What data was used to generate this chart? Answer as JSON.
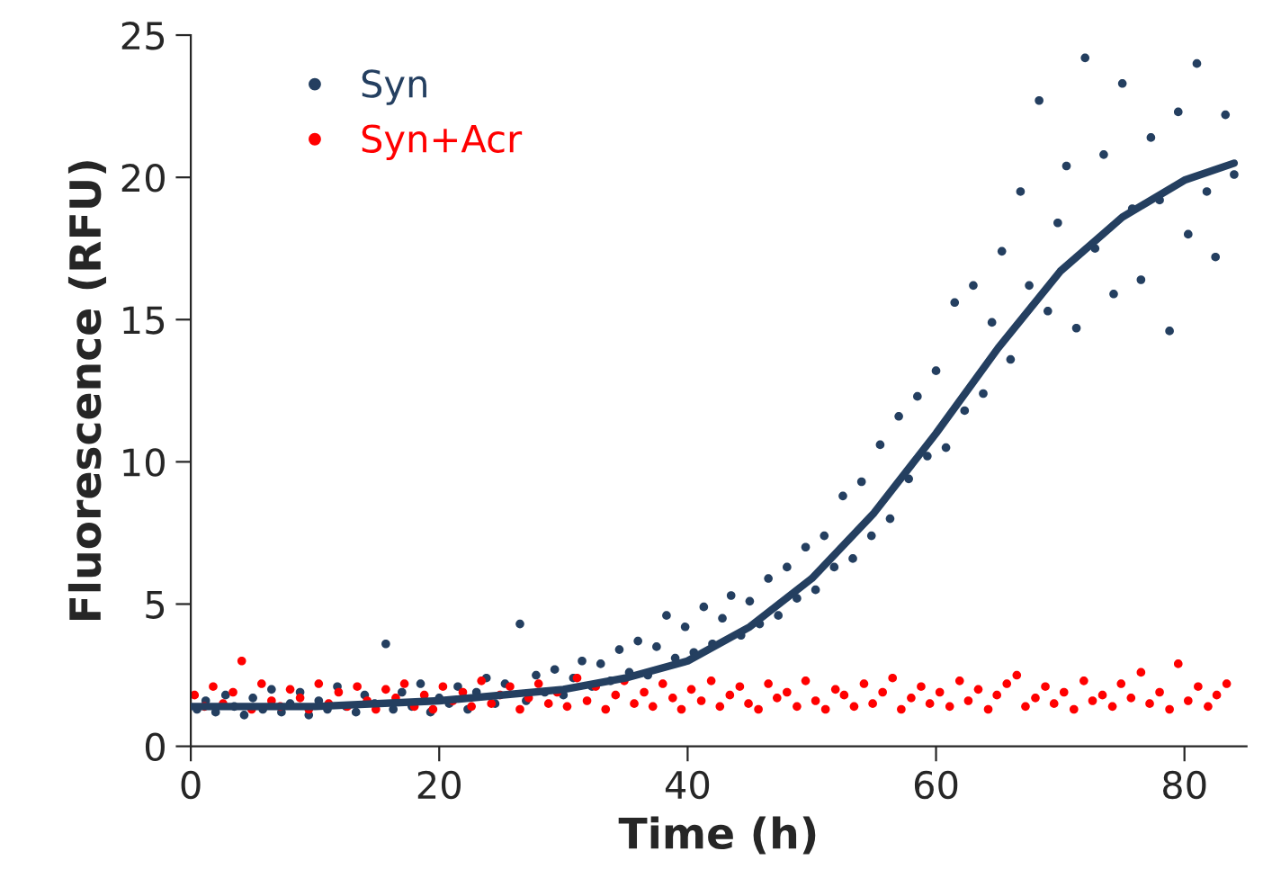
{
  "chart_data": {
    "type": "scatter",
    "xlabel": "Time (h)",
    "ylabel": "Fluorescence (RFU)",
    "xlim": [
      0,
      85
    ],
    "ylim": [
      0,
      25
    ],
    "xticks": [
      0,
      20,
      40,
      60,
      80
    ],
    "yticks": [
      0,
      5,
      10,
      15,
      20,
      25
    ],
    "grid": false,
    "legend": "top left",
    "series": [
      {
        "name": "Syn",
        "marker": "circle",
        "color": "#243f60",
        "x": [
          0.5,
          1.2,
          2,
          2.8,
          3.5,
          4.3,
          5,
          5.8,
          6.5,
          7.3,
          8,
          8.8,
          9.5,
          10.3,
          11,
          11.8,
          12.5,
          13.3,
          14,
          14.8,
          15.7,
          16.3,
          17,
          17.8,
          18.5,
          19.3,
          20,
          20.8,
          21.5,
          22.3,
          23,
          23.8,
          24.5,
          25.3,
          26.5,
          27,
          27.8,
          28.5,
          29.3,
          30,
          30.8,
          31.5,
          32.3,
          33,
          33.8,
          34.5,
          35.3,
          36,
          36.8,
          37.5,
          38.3,
          39,
          39.8,
          40.5,
          41.3,
          42,
          42.8,
          43.5,
          44.3,
          45,
          45.8,
          46.5,
          47.3,
          48,
          48.8,
          49.5,
          50.3,
          51,
          51.8,
          52.5,
          53.3,
          54,
          54.8,
          55.5,
          56.3,
          57,
          57.8,
          58.5,
          59.3,
          60,
          60.8,
          61.5,
          62.3,
          63,
          63.8,
          64.5,
          65.3,
          66,
          66.8,
          67.5,
          68.3,
          69,
          69.8,
          70.5,
          71.3,
          72,
          72.8,
          73.5,
          74.3,
          75,
          75.8,
          76.5,
          77.3,
          78,
          78.8,
          79.5,
          80.3,
          81,
          81.8,
          82.5,
          83.3,
          84
        ],
        "values": [
          1.3,
          1.6,
          1.2,
          1.8,
          1.4,
          1.1,
          1.7,
          1.3,
          2.0,
          1.2,
          1.5,
          1.9,
          1.1,
          1.6,
          1.3,
          2.1,
          1.4,
          1.2,
          1.8,
          1.5,
          3.6,
          1.3,
          1.9,
          1.4,
          2.2,
          1.2,
          1.7,
          1.5,
          2.1,
          1.3,
          1.9,
          2.4,
          1.5,
          2.2,
          4.3,
          1.6,
          2.5,
          1.9,
          2.7,
          1.8,
          2.4,
          3.0,
          2.1,
          2.9,
          2.3,
          3.4,
          2.6,
          3.7,
          2.5,
          3.5,
          4.6,
          3.1,
          4.2,
          3.3,
          4.9,
          3.6,
          4.5,
          5.3,
          3.9,
          5.1,
          4.3,
          5.9,
          4.6,
          6.3,
          5.2,
          7.0,
          5.5,
          7.4,
          6.3,
          8.8,
          6.6,
          9.3,
          7.4,
          10.6,
          8.0,
          11.6,
          9.4,
          12.3,
          10.2,
          13.2,
          10.5,
          15.6,
          11.8,
          16.2,
          12.4,
          14.9,
          17.4,
          13.6,
          19.5,
          16.2,
          22.7,
          15.3,
          18.4,
          20.4,
          14.7,
          24.2,
          17.5,
          20.8,
          15.9,
          23.3,
          18.9,
          16.4,
          21.4,
          19.2,
          14.6,
          22.3,
          18.0,
          24.0,
          19.5,
          17.2,
          22.2,
          20.1
        ]
      },
      {
        "name": "Syn+Acr",
        "marker": "circle",
        "color": "#ff0000",
        "x": [
          0.3,
          1.1,
          1.8,
          2.6,
          3.4,
          4.1,
          4.9,
          5.7,
          6.5,
          7.2,
          8,
          8.8,
          9.5,
          10.3,
          11.1,
          11.9,
          12.6,
          13.4,
          14.2,
          14.9,
          15.7,
          16.5,
          17.2,
          18,
          18.8,
          19.5,
          20.3,
          21.1,
          21.9,
          22.6,
          23.4,
          24.2,
          24.9,
          25.7,
          26.5,
          27.2,
          28,
          28.8,
          29.5,
          30.3,
          31.1,
          31.9,
          32.6,
          33.4,
          34.2,
          34.9,
          35.7,
          36.5,
          37.2,
          38,
          38.8,
          39.5,
          40.3,
          41.1,
          41.9,
          42.6,
          43.4,
          44.2,
          44.9,
          45.7,
          46.5,
          47.2,
          48,
          48.8,
          49.5,
          50.3,
          51.1,
          51.9,
          52.6,
          53.4,
          54.2,
          54.9,
          55.7,
          56.5,
          57.2,
          58,
          58.8,
          59.5,
          60.3,
          61.1,
          61.9,
          62.6,
          63.4,
          64.2,
          64.9,
          65.7,
          66.5,
          67.2,
          68,
          68.8,
          69.5,
          70.3,
          71.1,
          71.9,
          72.6,
          73.4,
          74.2,
          74.9,
          75.7,
          76.5,
          77.2,
          78,
          78.8,
          79.5,
          80.3,
          81.1,
          81.9,
          82.6,
          83.4
        ],
        "values": [
          1.8,
          1.4,
          2.1,
          1.5,
          1.9,
          3.0,
          1.3,
          2.2,
          1.6,
          1.4,
          2.0,
          1.7,
          1.3,
          2.2,
          1.5,
          1.9,
          1.4,
          2.1,
          1.6,
          1.3,
          2.0,
          1.7,
          2.2,
          1.4,
          1.8,
          1.3,
          2.1,
          1.6,
          1.9,
          1.4,
          2.3,
          1.5,
          1.8,
          2.1,
          1.3,
          1.7,
          2.2,
          1.5,
          1.9,
          1.4,
          2.4,
          1.6,
          2.1,
          1.3,
          1.8,
          2.3,
          1.5,
          1.9,
          1.4,
          2.2,
          1.7,
          1.3,
          2.0,
          1.6,
          2.3,
          1.4,
          1.8,
          2.1,
          1.5,
          1.3,
          2.2,
          1.7,
          1.9,
          1.4,
          2.3,
          1.6,
          1.3,
          2.0,
          1.8,
          1.4,
          2.2,
          1.5,
          1.9,
          2.4,
          1.3,
          1.7,
          2.1,
          1.5,
          1.9,
          1.4,
          2.3,
          1.6,
          2.0,
          1.3,
          1.8,
          2.2,
          2.5,
          1.4,
          1.7,
          2.1,
          1.5,
          1.9,
          1.3,
          2.3,
          1.6,
          1.8,
          1.4,
          2.2,
          1.7,
          2.6,
          1.5,
          1.9,
          1.3,
          2.9,
          1.6,
          2.1,
          1.4,
          1.8,
          2.2
        ]
      },
      {
        "type": "line",
        "marker": "none",
        "color": "#243f60",
        "x": [
          0,
          10,
          20,
          30,
          35,
          40,
          45,
          50,
          55,
          60,
          65,
          70,
          75,
          80,
          84
        ],
        "values": [
          1.4,
          1.4,
          1.6,
          2.0,
          2.4,
          3.0,
          4.2,
          5.9,
          8.2,
          11.0,
          14.0,
          16.7,
          18.6,
          19.9,
          20.5
        ]
      }
    ]
  }
}
